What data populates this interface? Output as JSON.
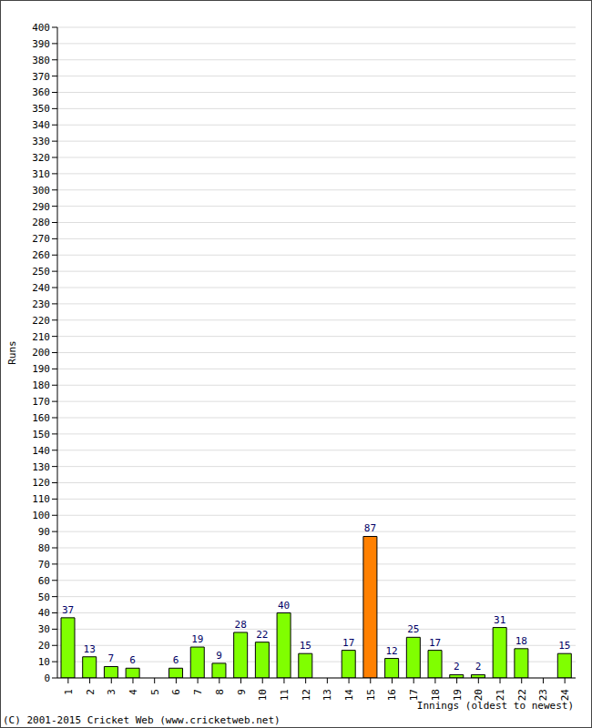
{
  "chart_data": {
    "type": "bar",
    "categories": [
      "1",
      "2",
      "3",
      "4",
      "5",
      "6",
      "7",
      "8",
      "9",
      "10",
      "11",
      "12",
      "13",
      "14",
      "15",
      "16",
      "17",
      "18",
      "19",
      "20",
      "21",
      "22",
      "23",
      "24"
    ],
    "values": [
      37,
      13,
      7,
      6,
      0,
      6,
      19,
      9,
      28,
      22,
      40,
      15,
      0,
      17,
      87,
      12,
      25,
      17,
      2,
      2,
      31,
      18,
      0,
      15
    ],
    "colors": [
      "#80ff00",
      "#80ff00",
      "#80ff00",
      "#80ff00",
      "#80ff00",
      "#80ff00",
      "#80ff00",
      "#80ff00",
      "#80ff00",
      "#80ff00",
      "#80ff00",
      "#80ff00",
      "#80ff00",
      "#80ff00",
      "#ff8000",
      "#80ff00",
      "#80ff00",
      "#80ff00",
      "#80ff00",
      "#80ff00",
      "#80ff00",
      "#80ff00",
      "#80ff00",
      "#80ff00"
    ],
    "xlabel": "Innings (oldest to newest)",
    "ylabel": "Runs",
    "annotations": [
      "(C) 2001-2015 Cricket Web (www.cricketweb.net)"
    ],
    "ylim": [
      0,
      400
    ],
    "yticks": [
      0,
      10,
      20,
      30,
      40,
      50,
      60,
      70,
      80,
      90,
      100,
      110,
      120,
      130,
      140,
      150,
      160,
      170,
      180,
      190,
      200,
      210,
      220,
      230,
      240,
      250,
      260,
      270,
      280,
      290,
      300,
      310,
      320,
      330,
      340,
      350,
      360,
      370,
      380,
      390,
      400
    ],
    "grid": true,
    "data_labels": true
  }
}
